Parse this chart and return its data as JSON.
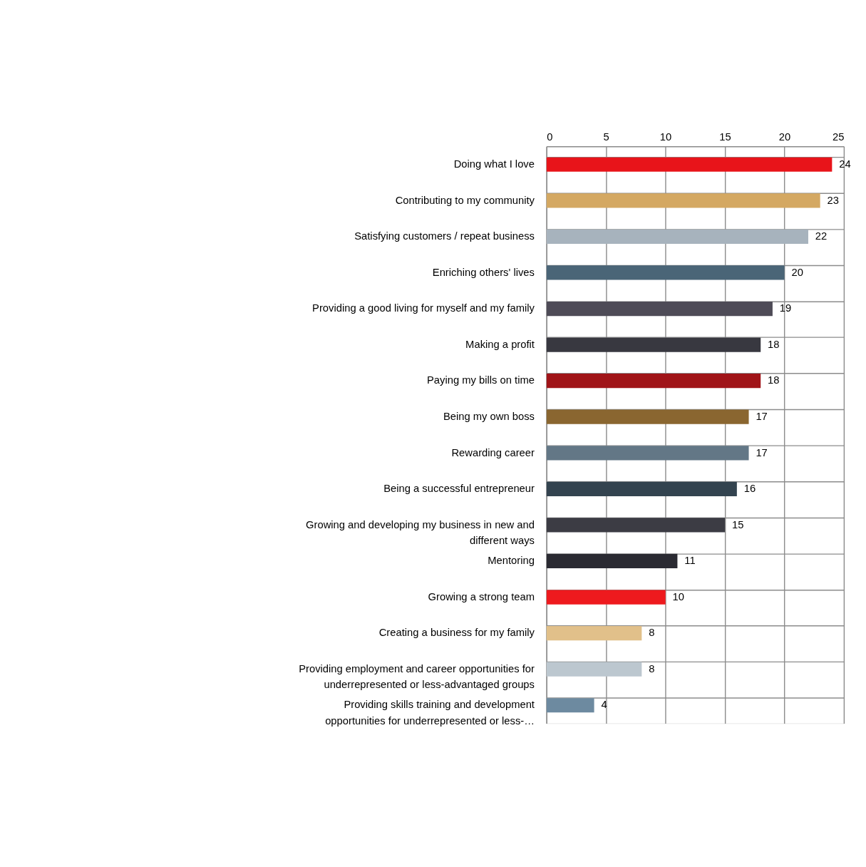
{
  "chart_data": {
    "type": "bar",
    "orientation": "horizontal",
    "categories": [
      "Doing what I love",
      "Contributing to my community",
      "Satisfying customers / repeat business",
      "Enriching others' lives",
      "Providing a good living for myself and my family",
      "Making a profit",
      "Paying my bills on time",
      "Being my own boss",
      "Rewarding career",
      "Being a successful entrepreneur",
      "Growing and developing my business in new and different ways",
      "Mentoring",
      "Growing a strong team",
      "Creating a business for my family",
      "Providing employment and career opportunities for underrepresented or less-advantaged groups",
      "Providing skills training and development opportunities for underrepresented or less-…"
    ],
    "values": [
      24,
      23,
      22,
      20,
      19,
      18,
      18,
      17,
      17,
      16,
      15,
      11,
      10,
      8,
      8,
      4
    ],
    "colors": [
      "#e8141a",
      "#d4a862",
      "#a7b3bd",
      "#4a6577",
      "#4e4b57",
      "#383840",
      "#a01418",
      "#8a6630",
      "#637786",
      "#33434f",
      "#3c3c44",
      "#2a2a32",
      "#ee1a1e",
      "#e1c08a",
      "#bcc7cf",
      "#6d8aa0"
    ],
    "xlim": [
      0,
      25
    ],
    "xticks": [
      0,
      5,
      10,
      15,
      20,
      25
    ],
    "grid": true,
    "data_labels": true
  }
}
